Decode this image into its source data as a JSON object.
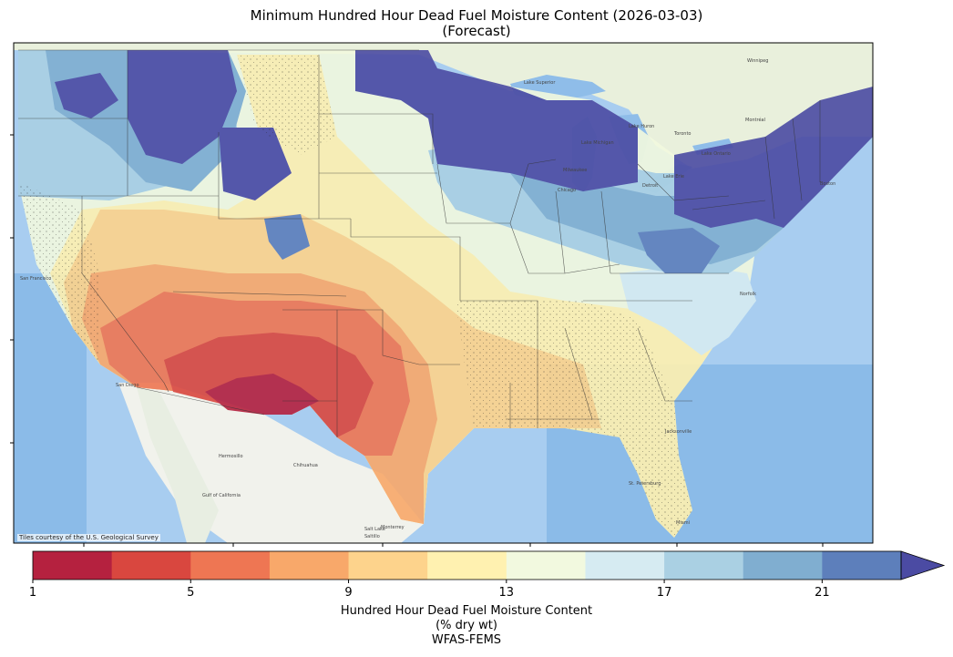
{
  "title_line1": "Minimum Hundred Hour Dead Fuel Moisture Content (2026-03-03)",
  "title_line2": "(Forecast)",
  "attribution": "Tiles courtesy of the U.S. Geological Survey",
  "colorbar": {
    "label_line1": "Hundred Hour Dead Fuel Moisture Content",
    "label_line2": "(% dry wt)",
    "label_line3": "WFAS-FEMS",
    "min": 1,
    "max": 23,
    "extend": "max",
    "bins": [
      {
        "from": 1,
        "to": 3,
        "color": "#b5213f"
      },
      {
        "from": 3,
        "to": 5,
        "color": "#d9473f"
      },
      {
        "from": 5,
        "to": 7,
        "color": "#ee7653"
      },
      {
        "from": 7,
        "to": 9,
        "color": "#f8a86a"
      },
      {
        "from": 9,
        "to": 11,
        "color": "#fdd38c"
      },
      {
        "from": 11,
        "to": 13,
        "color": "#fff1b0"
      },
      {
        "from": 13,
        "to": 15,
        "color": "#f2f9df"
      },
      {
        "from": 15,
        "to": 17,
        "color": "#d6ebf2"
      },
      {
        "from": 17,
        "to": 19,
        "color": "#aad0e3"
      },
      {
        "from": 19,
        "to": 21,
        "color": "#80aed0"
      },
      {
        "from": 21,
        "to": 23,
        "color": "#5d7fbb"
      }
    ],
    "extend_color": "#4b4ba3",
    "ticks": [
      "1",
      "5",
      "9",
      "13",
      "17",
      "21"
    ]
  },
  "map_places": {
    "city_winnipeg": "Winnipeg",
    "city_toronto": "Toronto",
    "city_montreal": "Montréal",
    "city_boston": "Boston",
    "city_milwaukee": "Milwaukee",
    "city_chicago": "Chicago",
    "city_detroit": "Detroit",
    "city_sanfrancisco": "San Francisco",
    "city_saltlake": "Salt Lake",
    "city_sandiego": "San Diego",
    "city_hermosillo": "Hermosillo",
    "city_chihuahua": "Chihuahua",
    "city_monterrey": "Monterrey",
    "city_saltillo": "Saltillo",
    "city_jacksonville": "Jacksonville",
    "city_stpetersburg": "St. Petersburg",
    "city_miami": "Miami",
    "city_norfolk": "Norfolk",
    "lake_superior": "Lake Superior",
    "lake_michigan": "Lake Michigan",
    "lake_huron": "Lake Huron",
    "lake_erie": "Lake Erie",
    "lake_ontario": "Lake Ontario",
    "gulf_california": "Gulf of California"
  }
}
